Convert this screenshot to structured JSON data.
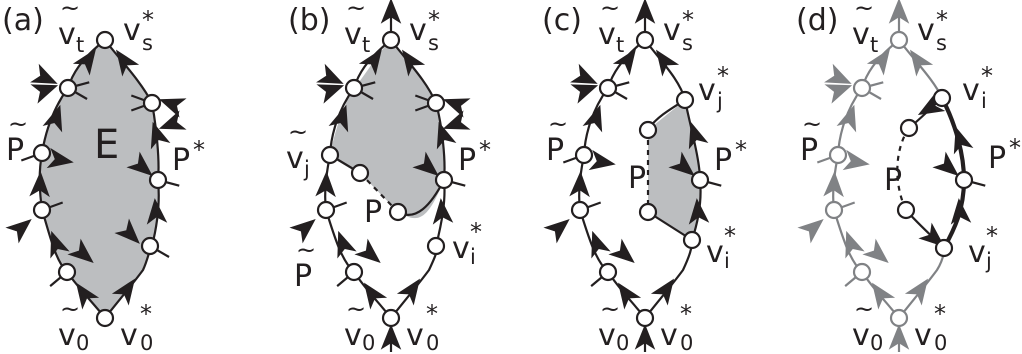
{
  "panels": [
    {
      "tag": "(a)",
      "face": "E"
    },
    {
      "tag": "(b)",
      "path_label": "P"
    },
    {
      "tag": "(c)",
      "path_label": "P"
    },
    {
      "tag": "(d)",
      "path_label": "P"
    }
  ],
  "labels": {
    "v": "v",
    "s": "s",
    "t": "t",
    "zero": "0",
    "i": "i",
    "j": "j",
    "star": "*",
    "tilde": "~",
    "P": "P"
  },
  "colors": {
    "face": "#bcbec0",
    "ink": "#231f20",
    "gray": "#808285"
  }
}
